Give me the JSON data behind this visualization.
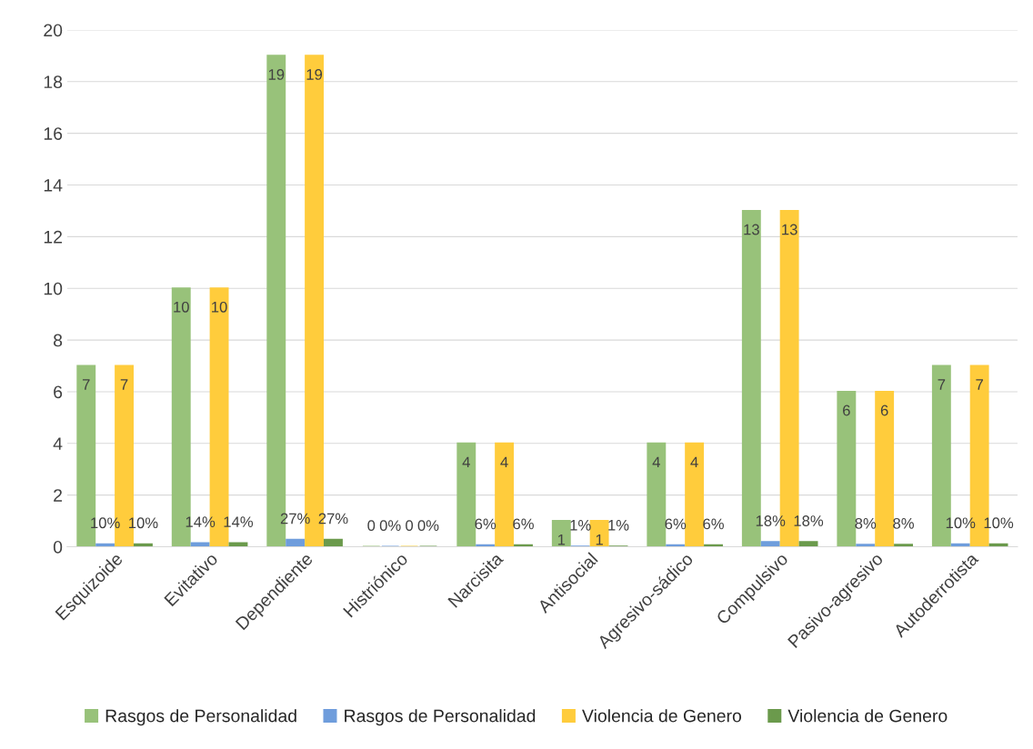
{
  "chart_data": {
    "type": "bar",
    "categories": [
      "Esquizoide",
      "Evitativo",
      "Dependiente",
      "Histriónico",
      "Narcisita",
      "Antisocial",
      "Agresivo-sádico",
      "Compulsivo",
      "Pasivo-agresivo",
      "Autoderrotista"
    ],
    "series": [
      {
        "name": "Rasgos de Personalidad",
        "color": "#98c27a",
        "values": [
          7,
          10,
          19,
          0,
          4,
          1,
          4,
          13,
          6,
          7
        ],
        "value_labels": [
          "7",
          "10",
          "19",
          "0",
          "4",
          "1",
          "4",
          "13",
          "6",
          "7"
        ]
      },
      {
        "name": "Rasgos de Personalidad",
        "color": "#6f9ddc",
        "values": [
          0.1,
          0.14,
          0.27,
          0,
          0.06,
          0.01,
          0.06,
          0.18,
          0.08,
          0.1
        ],
        "value_labels": [
          "10%",
          "14%",
          "27%",
          "0%",
          "6%",
          "1%",
          "6%",
          "18%",
          "8%",
          "10%"
        ]
      },
      {
        "name": "Violencia de Genero",
        "color": "#ffcc3c",
        "values": [
          7,
          10,
          19,
          0,
          4,
          1,
          4,
          13,
          6,
          7
        ],
        "value_labels": [
          "7",
          "10",
          "19",
          "0",
          "4",
          "1",
          "4",
          "13",
          "6",
          "7"
        ]
      },
      {
        "name": "Violencia de Genero",
        "color": "#6b9a4c",
        "values": [
          0.1,
          0.14,
          0.27,
          0,
          0.06,
          0.01,
          0.06,
          0.18,
          0.08,
          0.1
        ],
        "value_labels": [
          "10%",
          "14%",
          "27%",
          "0%",
          "6%",
          "1%",
          "6%",
          "18%",
          "8%",
          "10%"
        ]
      }
    ],
    "ylim": [
      0,
      20
    ],
    "yticks": [
      0,
      2,
      4,
      6,
      8,
      10,
      12,
      14,
      16,
      18,
      20
    ],
    "grid": "y",
    "legend": "bottom"
  }
}
